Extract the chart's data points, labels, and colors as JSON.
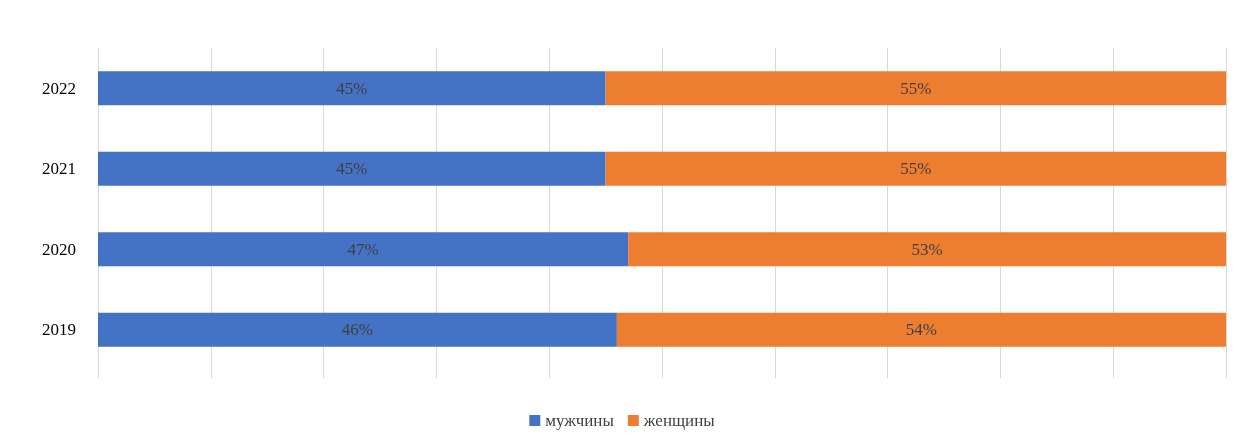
{
  "chart_data": {
    "type": "bar",
    "orientation": "horizontal",
    "stacked": true,
    "categories": [
      "2022",
      "2021",
      "2020",
      "2019"
    ],
    "series": [
      {
        "name": "мужчины",
        "color": "#4472c4",
        "values": [
          45,
          45,
          47,
          46
        ],
        "value_labels": [
          "45%",
          "45%",
          "47%",
          "46%"
        ]
      },
      {
        "name": "женщины",
        "color": "#ed7d31",
        "values": [
          55,
          55,
          53,
          54
        ],
        "value_labels": [
          "55%",
          "55%",
          "53%",
          "54%"
        ]
      }
    ],
    "xlim": [
      0,
      100
    ],
    "xticks": [
      {
        "value": 0,
        "label": null
      },
      {
        "value": 10,
        "label": null
      },
      {
        "value": 20,
        "label": null
      },
      {
        "value": 30,
        "label": null
      },
      {
        "value": 40,
        "label": null
      },
      {
        "value": 50,
        "label": null
      },
      {
        "value": 60,
        "label": null
      },
      {
        "value": 70,
        "label": null
      },
      {
        "value": 80,
        "label": null
      },
      {
        "value": 90,
        "label": null
      },
      {
        "value": 100,
        "label": null
      }
    ],
    "tick_labels": "y",
    "grid": "x",
    "legend": "bottom"
  }
}
